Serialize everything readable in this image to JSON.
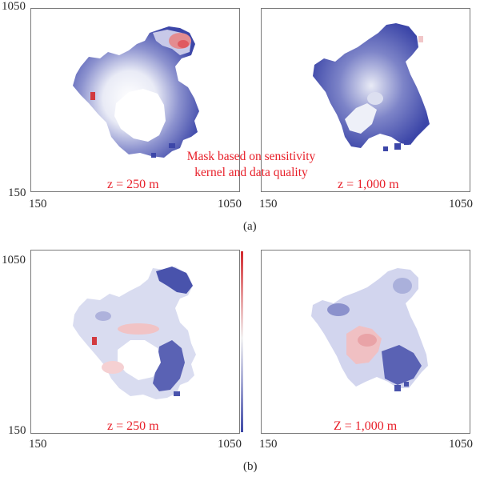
{
  "panel_a": {
    "caption": "(a)",
    "left": {
      "z_label": "z = 250 m",
      "y_top": "1050",
      "y_bottom": "150",
      "x_left": "150",
      "x_right": "1050"
    },
    "right": {
      "z_label": "z = 1,000 m",
      "x_left": "150",
      "x_right": "1050"
    },
    "annotation_line1": "Mask based on sensitivity",
    "annotation_line2": "kernel and data quality"
  },
  "panel_b": {
    "caption": "(b)",
    "left": {
      "z_label": "z = 250 m",
      "y_top": "1050",
      "y_bottom": "150",
      "x_left": "150",
      "x_right": "1050"
    },
    "right": {
      "z_label": "Z = 1,000 m",
      "x_left": "150",
      "x_right": "1050"
    }
  },
  "colors": {
    "positive": "#e8202a",
    "negative": "#3b45a8",
    "neutral": "#f4f4f4",
    "label_red": "#e8202a"
  }
}
